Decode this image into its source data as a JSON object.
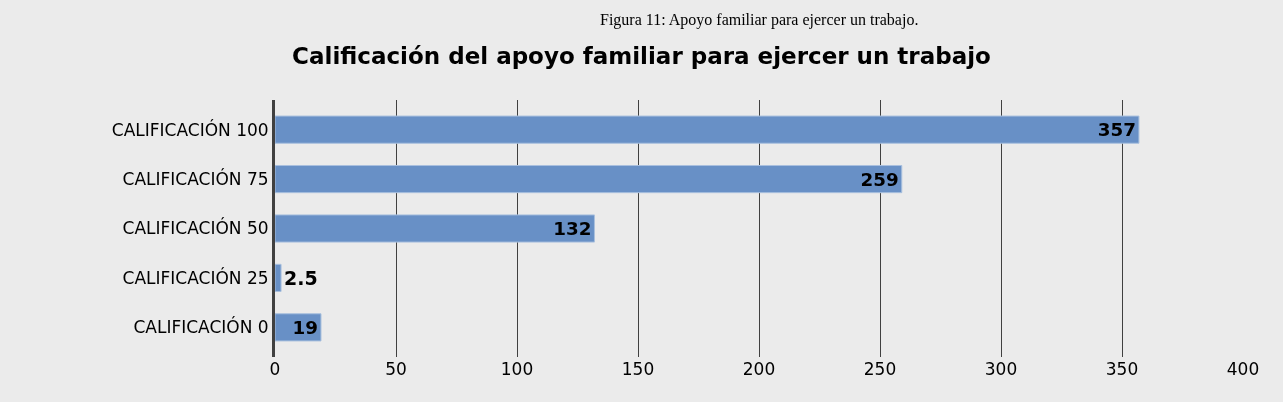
{
  "chart_data": {
    "type": "bar",
    "orientation": "horizontal",
    "title": "Calificación del apoyo familiar para ejercer un trabajo",
    "annotations": [
      "Figura 11: Apoyo familiar para ejercer un trabajo."
    ],
    "categories": [
      "CALIFICACIÓN 100",
      "CALIFICACIÓN 75",
      "CALIFICACIÓN 50",
      "CALIFICACIÓN 25",
      "CALIFICACIÓN 0"
    ],
    "values": [
      357,
      259,
      132,
      2.5,
      19
    ],
    "color": "#6890c6",
    "xlim": [
      0,
      400
    ],
    "xticks": [
      0,
      50,
      100,
      150,
      200,
      250,
      300,
      350,
      400
    ],
    "grid": "x",
    "data_labels": true,
    "legend": false
  }
}
